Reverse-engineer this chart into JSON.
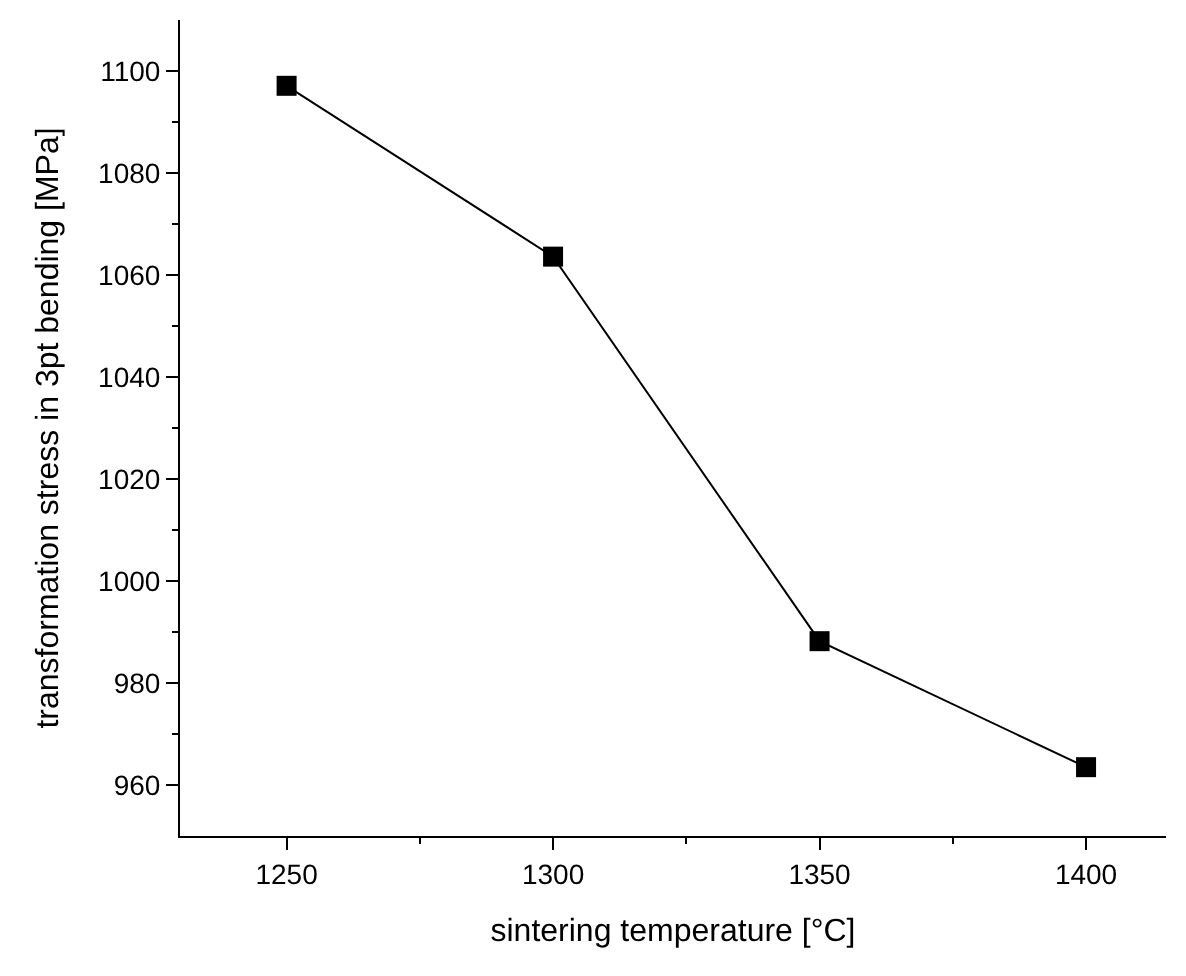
{
  "chart_data": {
    "type": "line",
    "xlabel": "sintering temperature [°C]",
    "ylabel": "transformation stress in 3pt bending [MPa]",
    "x": [
      1250,
      1300,
      1350,
      1400
    ],
    "series": [
      {
        "color": "#000000",
        "values": [
          1097.1,
          1063.6,
          988.2,
          963.5
        ]
      }
    ],
    "marker": "square",
    "line_style": "solid",
    "grid": false,
    "xlim": [
      1230,
      1415
    ],
    "ylim": [
      950,
      1110
    ],
    "xticks": [
      1250,
      {
        "value": 1275,
        "label": null
      },
      1300,
      {
        "value": 1325,
        "label": null
      },
      1350,
      {
        "value": 1375,
        "label": null
      },
      1400
    ],
    "yticks": [
      960,
      {
        "value": 970,
        "label": null
      },
      980,
      {
        "value": 990,
        "label": null
      },
      1000,
      {
        "value": 1010,
        "label": null
      },
      1020,
      {
        "value": 1030,
        "label": null
      },
      1040,
      {
        "value": 1050,
        "label": null
      },
      1060,
      {
        "value": 1070,
        "label": null
      },
      1080,
      {
        "value": 1090,
        "label": null
      },
      1100
    ]
  }
}
